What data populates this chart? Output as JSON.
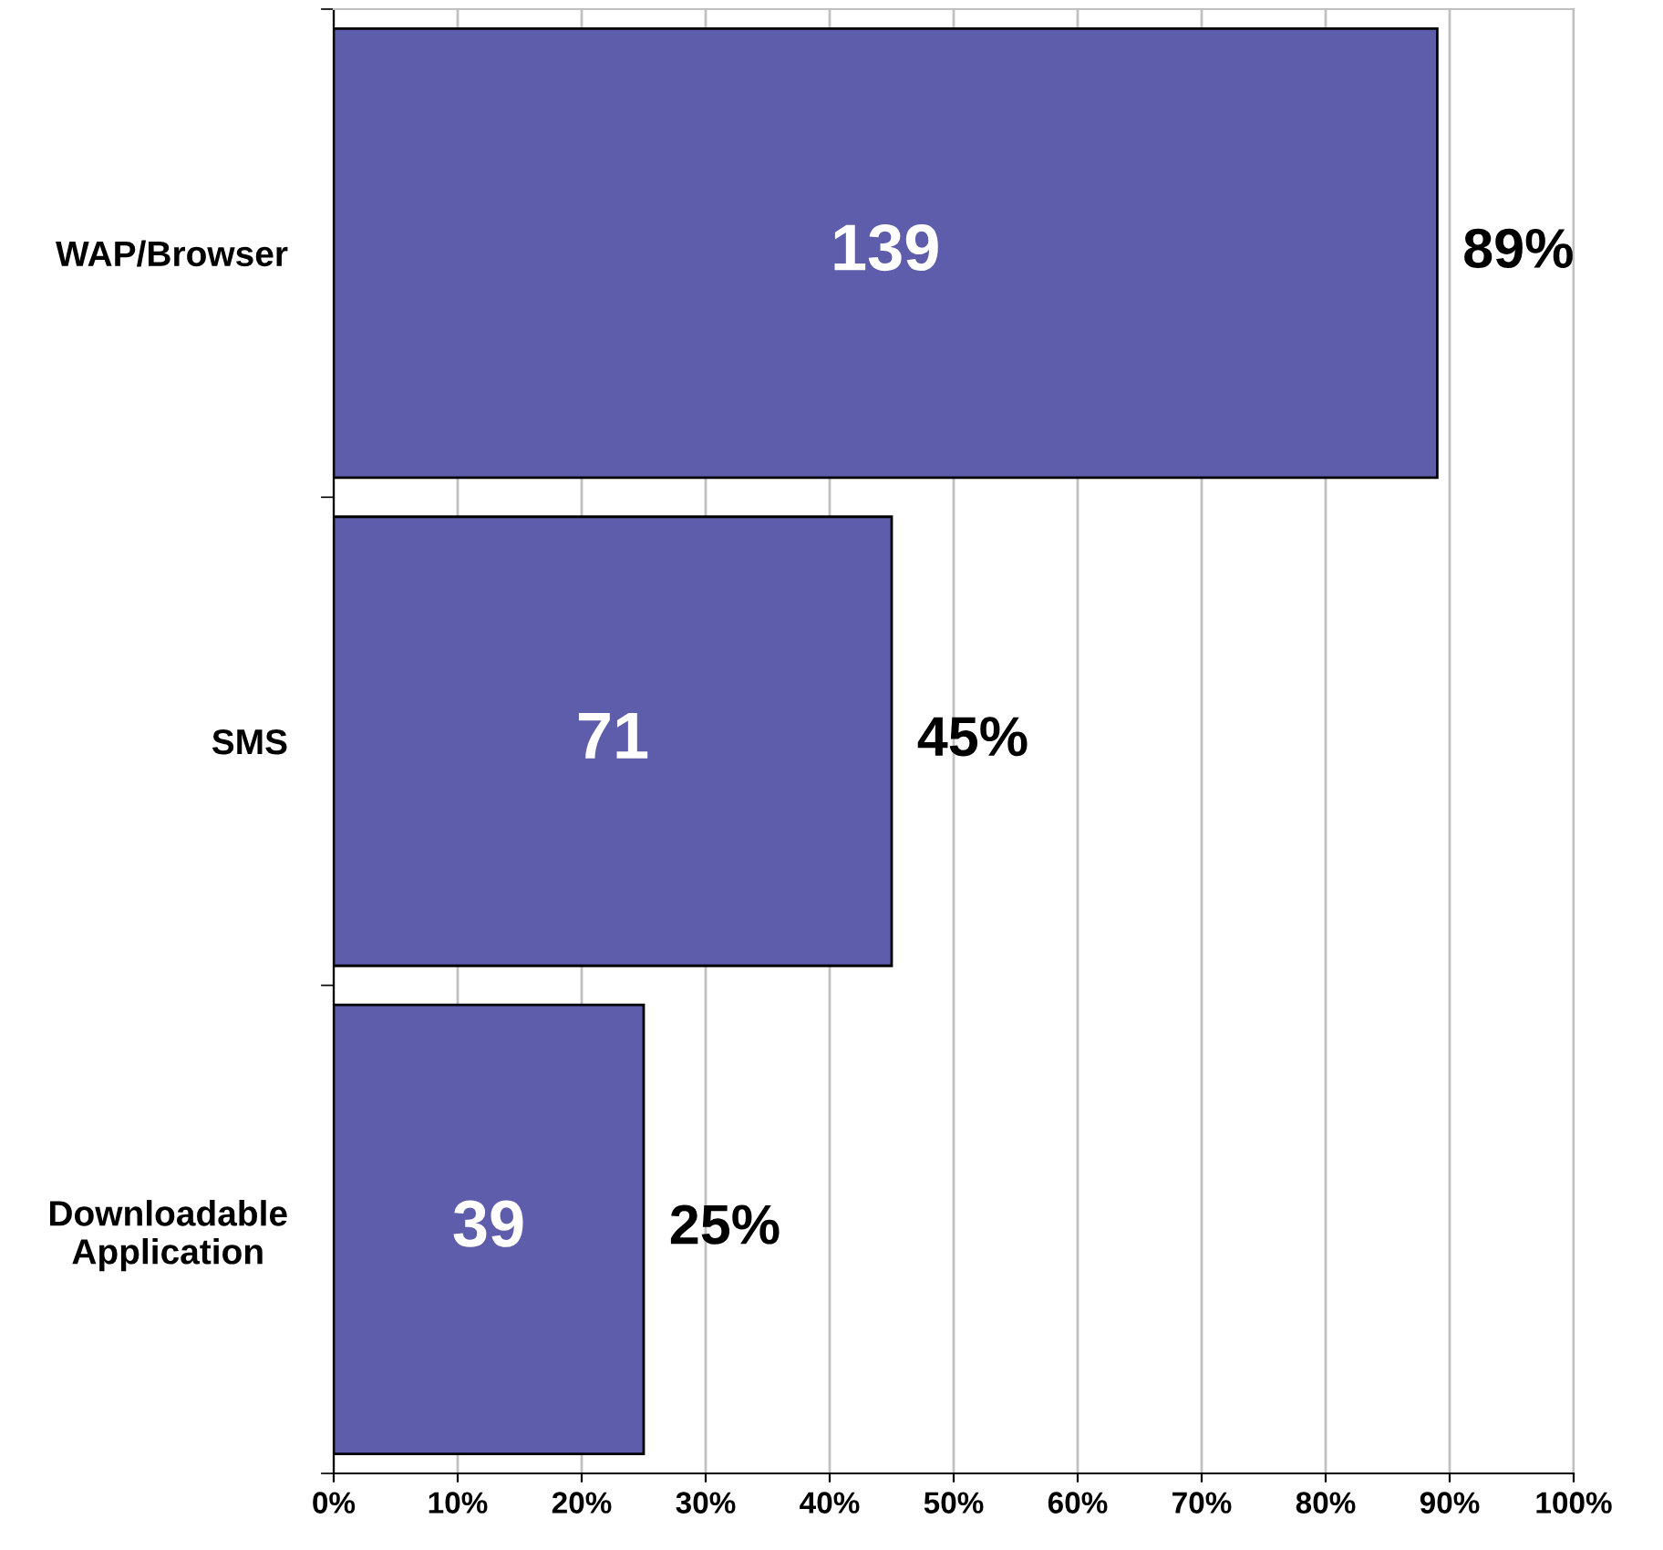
{
  "chart_data": {
    "type": "bar",
    "orientation": "horizontal",
    "categories": [
      "WAP/Browser",
      "SMS",
      "Downloadable\nApplication"
    ],
    "values": [
      89,
      45,
      25
    ],
    "color": "#5d5dab",
    "value_labels": [
      "89%",
      "45%",
      "25%"
    ],
    "annotations": [
      "139",
      "71",
      "39"
    ],
    "xlim": [
      0,
      100
    ],
    "xticks": [
      {
        "value": 0,
        "label": "0%"
      },
      {
        "value": 10,
        "label": "10%"
      },
      {
        "value": 20,
        "label": "20%"
      },
      {
        "value": 30,
        "label": "30%"
      },
      {
        "value": 40,
        "label": "40%"
      },
      {
        "value": 50,
        "label": "50%"
      },
      {
        "value": 60,
        "label": "60%"
      },
      {
        "value": 70,
        "label": "70%"
      },
      {
        "value": 80,
        "label": "80%"
      },
      {
        "value": 90,
        "label": "90%"
      },
      {
        "value": 100,
        "label": "100%"
      }
    ],
    "grid": "x"
  }
}
